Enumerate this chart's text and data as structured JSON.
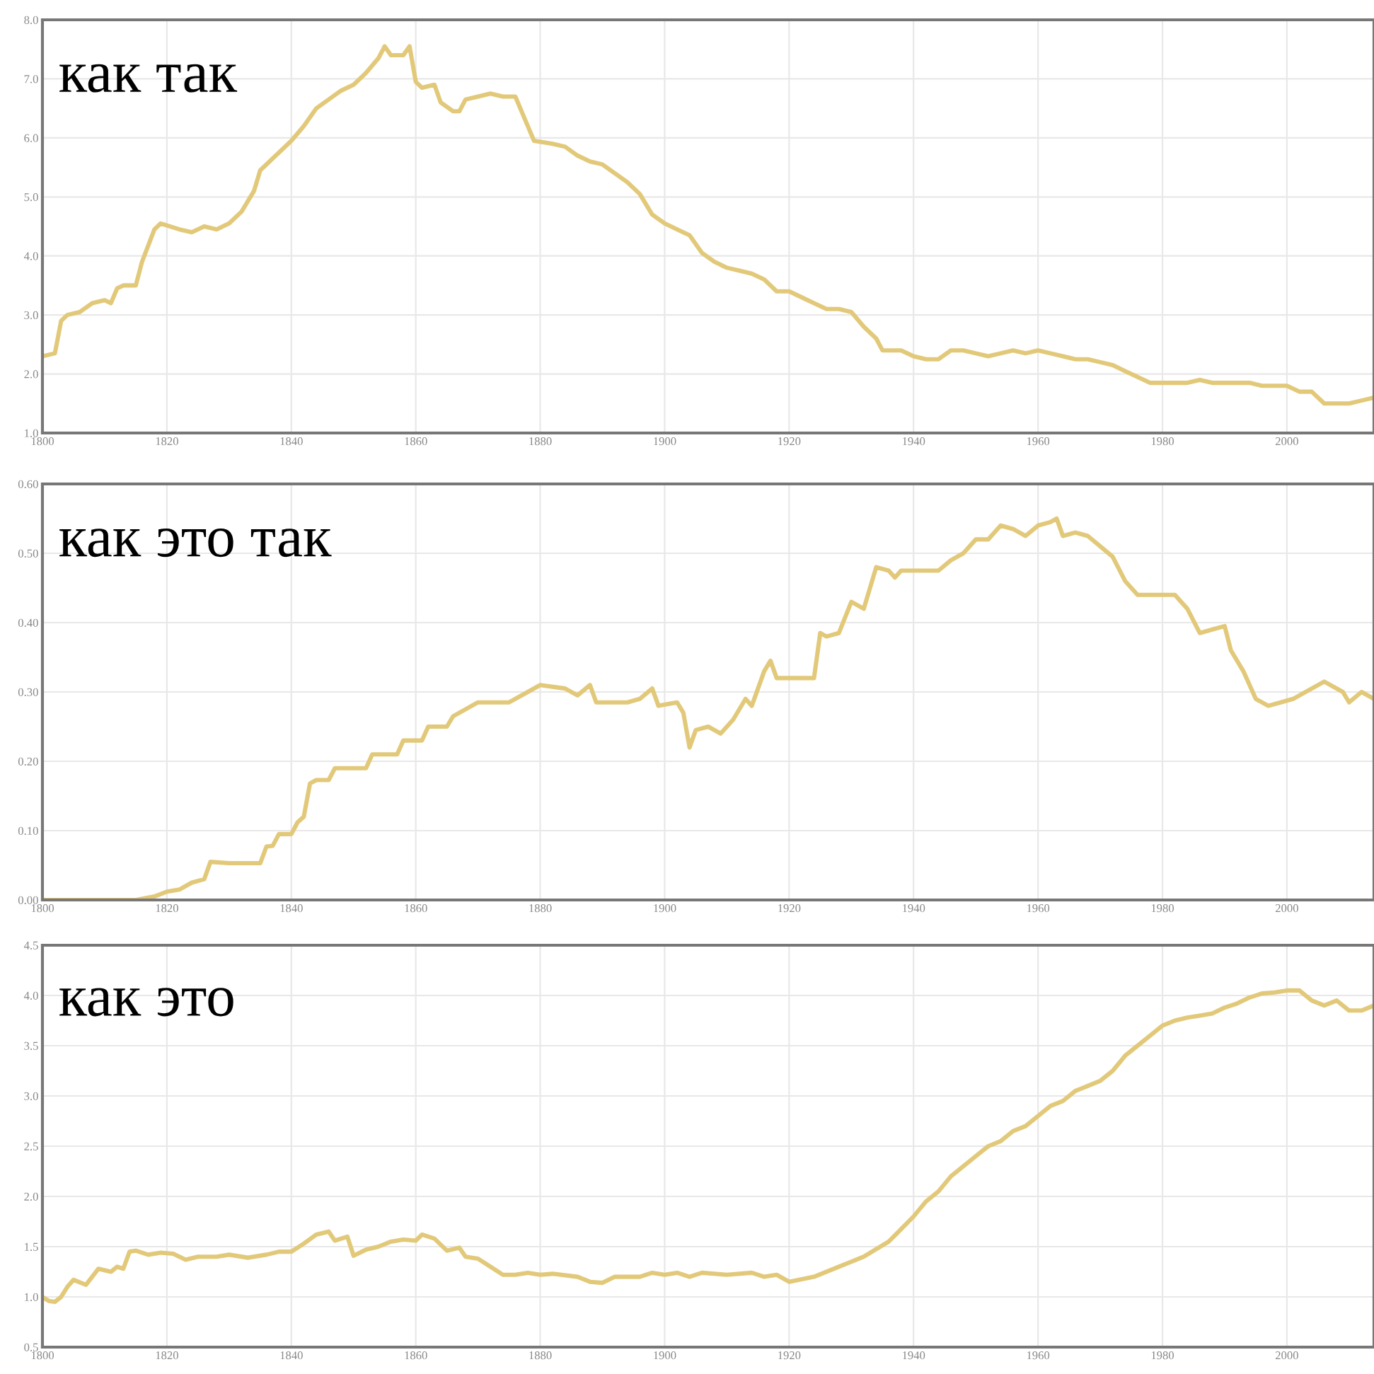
{
  "chart_data": [
    {
      "type": "line",
      "title": "как так",
      "xlim": [
        1800,
        2014
      ],
      "xticks": [
        1800,
        1820,
        1840,
        1860,
        1880,
        1900,
        1920,
        1940,
        1960,
        1980,
        2000
      ],
      "ylim": [
        1.0,
        8.0
      ],
      "yticks": [
        {
          "value": 1,
          "label": "1.0"
        },
        {
          "value": 2,
          "label": "2.0"
        },
        {
          "value": 3,
          "label": "3.0"
        },
        {
          "value": 4,
          "label": "4.0"
        },
        {
          "value": 5,
          "label": "5.0"
        },
        {
          "value": 6,
          "label": "6.0"
        },
        {
          "value": 7,
          "label": "7.0"
        },
        {
          "value": 8,
          "label": "8.0"
        }
      ],
      "grid": true,
      "series": [
        {
          "color": "#e2c97a",
          "x": [
            1800,
            1802,
            1803,
            1804,
            1806,
            1808,
            1810,
            1811,
            1812,
            1813,
            1815,
            1816,
            1818,
            1819,
            1822,
            1824,
            1826,
            1828,
            1830,
            1832,
            1834,
            1835,
            1837,
            1840,
            1842,
            1844,
            1846,
            1848,
            1850,
            1852,
            1854,
            1855,
            1856,
            1858,
            1859,
            1860,
            1861,
            1863,
            1864,
            1866,
            1867,
            1868,
            1870,
            1872,
            1874,
            1876,
            1878,
            1879,
            1882,
            1884,
            1886,
            1888,
            1890,
            1892,
            1894,
            1896,
            1898,
            1900,
            1902,
            1904,
            1906,
            1908,
            1910,
            1912,
            1914,
            1916,
            1918,
            1920,
            1922,
            1924,
            1926,
            1928,
            1930,
            1932,
            1934,
            1935,
            1938,
            1940,
            1942,
            1944,
            1946,
            1948,
            1950,
            1952,
            1954,
            1956,
            1958,
            1960,
            1962,
            1964,
            1966,
            1968,
            1970,
            1972,
            1974,
            1976,
            1978,
            1980,
            1984,
            1986,
            1988,
            1990,
            1994,
            1996,
            2000,
            2002,
            2004,
            2006,
            2010,
            2012,
            2014
          ],
          "values": [
            2.3,
            2.35,
            2.9,
            3.0,
            3.05,
            3.2,
            3.25,
            3.2,
            3.45,
            3.5,
            3.5,
            3.9,
            4.45,
            4.55,
            4.45,
            4.4,
            4.5,
            4.45,
            4.55,
            4.75,
            5.1,
            5.45,
            5.65,
            5.95,
            6.2,
            6.5,
            6.65,
            6.8,
            6.9,
            7.1,
            7.35,
            7.55,
            7.4,
            7.4,
            7.55,
            6.95,
            6.85,
            6.9,
            6.6,
            6.45,
            6.45,
            6.65,
            6.7,
            6.75,
            6.7,
            6.7,
            6.2,
            5.95,
            5.9,
            5.85,
            5.7,
            5.6,
            5.55,
            5.4,
            5.25,
            5.05,
            4.7,
            4.55,
            4.45,
            4.35,
            4.05,
            3.9,
            3.8,
            3.75,
            3.7,
            3.6,
            3.4,
            3.4,
            3.3,
            3.2,
            3.1,
            3.1,
            3.05,
            2.8,
            2.6,
            2.4,
            2.4,
            2.3,
            2.25,
            2.25,
            2.4,
            2.4,
            2.35,
            2.3,
            2.35,
            2.4,
            2.35,
            2.4,
            2.35,
            2.3,
            2.25,
            2.25,
            2.2,
            2.15,
            2.05,
            1.95,
            1.85,
            1.85,
            1.85,
            1.9,
            1.85,
            1.85,
            1.85,
            1.8,
            1.8,
            1.7,
            1.7,
            1.5,
            1.5,
            1.55,
            1.6
          ]
        }
      ]
    },
    {
      "type": "line",
      "title": "как это так",
      "xlim": [
        1800,
        2014
      ],
      "xticks": [
        1800,
        1820,
        1840,
        1860,
        1880,
        1900,
        1920,
        1940,
        1960,
        1980,
        2000
      ],
      "ylim": [
        0.0,
        0.6
      ],
      "yticks": [
        {
          "value": 0,
          "label": "0.00"
        },
        {
          "value": 0.1,
          "label": "0.10"
        },
        {
          "value": 0.2,
          "label": "0.20"
        },
        {
          "value": 0.3,
          "label": "0.30"
        },
        {
          "value": 0.4,
          "label": "0.40"
        },
        {
          "value": 0.5,
          "label": "0.50"
        },
        {
          "value": 0.6,
          "label": "0.60"
        }
      ],
      "grid": true,
      "series": [
        {
          "color": "#e2c97a",
          "x": [
            1800,
            1815,
            1818,
            1820,
            1822,
            1824,
            1826,
            1827,
            1830,
            1835,
            1836,
            1837,
            1838,
            1840,
            1841,
            1842,
            1843,
            1844,
            1846,
            1847,
            1852,
            1853,
            1857,
            1858,
            1861,
            1862,
            1865,
            1866,
            1870,
            1875,
            1878,
            1880,
            1884,
            1886,
            1888,
            1889,
            1894,
            1896,
            1898,
            1899,
            1902,
            1903,
            1904,
            1905,
            1907,
            1909,
            1911,
            1913,
            1914,
            1916,
            1917,
            1918,
            1924,
            1925,
            1926,
            1928,
            1930,
            1932,
            1934,
            1936,
            1937,
            1938,
            1944,
            1946,
            1948,
            1950,
            1952,
            1954,
            1956,
            1958,
            1960,
            1962,
            1963,
            1964,
            1966,
            1968,
            1970,
            1972,
            1974,
            1976,
            1978,
            1982,
            1983,
            1984,
            1986,
            1988,
            1990,
            1991,
            1993,
            1995,
            1997,
            1999,
            2001,
            2004,
            2006,
            2009,
            2010,
            2012,
            2014
          ],
          "values": [
            0.0,
            0.0,
            0.005,
            0.012,
            0.015,
            0.025,
            0.03,
            0.055,
            0.053,
            0.053,
            0.077,
            0.078,
            0.095,
            0.095,
            0.112,
            0.12,
            0.168,
            0.173,
            0.173,
            0.19,
            0.19,
            0.21,
            0.21,
            0.23,
            0.23,
            0.25,
            0.25,
            0.265,
            0.285,
            0.285,
            0.3,
            0.31,
            0.305,
            0.295,
            0.31,
            0.285,
            0.285,
            0.29,
            0.305,
            0.28,
            0.285,
            0.27,
            0.22,
            0.245,
            0.25,
            0.24,
            0.26,
            0.29,
            0.28,
            0.33,
            0.345,
            0.32,
            0.32,
            0.385,
            0.38,
            0.385,
            0.43,
            0.42,
            0.48,
            0.475,
            0.465,
            0.475,
            0.475,
            0.49,
            0.5,
            0.52,
            0.52,
            0.54,
            0.535,
            0.525,
            0.54,
            0.545,
            0.55,
            0.525,
            0.53,
            0.525,
            0.51,
            0.495,
            0.46,
            0.44,
            0.44,
            0.44,
            0.43,
            0.42,
            0.385,
            0.39,
            0.395,
            0.36,
            0.33,
            0.29,
            0.28,
            0.285,
            0.29,
            0.305,
            0.315,
            0.3,
            0.285,
            0.3,
            0.29
          ]
        }
      ]
    },
    {
      "type": "line",
      "title": "как это",
      "xlim": [
        1800,
        2014
      ],
      "xticks": [
        1800,
        1820,
        1840,
        1860,
        1880,
        1900,
        1920,
        1940,
        1960,
        1980,
        2000
      ],
      "ylim": [
        0.5,
        4.5
      ],
      "yticks": [
        {
          "value": 0.5,
          "label": "0.5"
        },
        {
          "value": 1,
          "label": "1.0"
        },
        {
          "value": 1.5,
          "label": "1.5"
        },
        {
          "value": 2,
          "label": "2.0"
        },
        {
          "value": 2.5,
          "label": "2.5"
        },
        {
          "value": 3,
          "label": "3.0"
        },
        {
          "value": 3.5,
          "label": "3.5"
        },
        {
          "value": 4,
          "label": "4.0"
        },
        {
          "value": 4.5,
          "label": "4.5"
        }
      ],
      "grid": true,
      "series": [
        {
          "color": "#e2c97a",
          "x": [
            1800,
            1801,
            1802,
            1803,
            1804,
            1805,
            1807,
            1809,
            1811,
            1812,
            1813,
            1814,
            1815,
            1817,
            1819,
            1821,
            1823,
            1825,
            1828,
            1830,
            1833,
            1836,
            1838,
            1840,
            1842,
            1844,
            1846,
            1847,
            1849,
            1850,
            1852,
            1854,
            1856,
            1858,
            1860,
            1861,
            1863,
            1865,
            1867,
            1868,
            1870,
            1872,
            1874,
            1876,
            1878,
            1880,
            1882,
            1886,
            1888,
            1890,
            1892,
            1896,
            1898,
            1900,
            1902,
            1904,
            1906,
            1910,
            1914,
            1916,
            1918,
            1920,
            1924,
            1928,
            1932,
            1936,
            1940,
            1942,
            1944,
            1946,
            1948,
            1950,
            1952,
            1954,
            1956,
            1958,
            1960,
            1962,
            1964,
            1966,
            1968,
            1970,
            1972,
            1974,
            1976,
            1978,
            1980,
            1982,
            1984,
            1986,
            1988,
            1990,
            1992,
            1994,
            1996,
            1998,
            2000,
            2002,
            2004,
            2006,
            2008,
            2010,
            2012,
            2014
          ],
          "values": [
            1.0,
            0.96,
            0.95,
            1.0,
            1.1,
            1.17,
            1.12,
            1.28,
            1.25,
            1.3,
            1.28,
            1.45,
            1.46,
            1.42,
            1.44,
            1.43,
            1.37,
            1.4,
            1.4,
            1.42,
            1.39,
            1.42,
            1.45,
            1.45,
            1.53,
            1.62,
            1.65,
            1.56,
            1.6,
            1.41,
            1.47,
            1.5,
            1.55,
            1.57,
            1.56,
            1.62,
            1.58,
            1.46,
            1.49,
            1.4,
            1.38,
            1.3,
            1.22,
            1.22,
            1.24,
            1.22,
            1.23,
            1.2,
            1.15,
            1.14,
            1.2,
            1.2,
            1.24,
            1.22,
            1.24,
            1.2,
            1.24,
            1.22,
            1.24,
            1.2,
            1.22,
            1.15,
            1.2,
            1.3,
            1.4,
            1.55,
            1.8,
            1.95,
            2.05,
            2.2,
            2.3,
            2.4,
            2.5,
            2.55,
            2.65,
            2.7,
            2.8,
            2.9,
            2.95,
            3.05,
            3.1,
            3.15,
            3.25,
            3.4,
            3.5,
            3.6,
            3.7,
            3.75,
            3.78,
            3.8,
            3.82,
            3.88,
            3.92,
            3.98,
            4.02,
            4.03,
            4.05,
            4.05,
            3.95,
            3.9,
            3.95,
            3.85,
            3.85,
            3.9
          ]
        }
      ]
    }
  ]
}
